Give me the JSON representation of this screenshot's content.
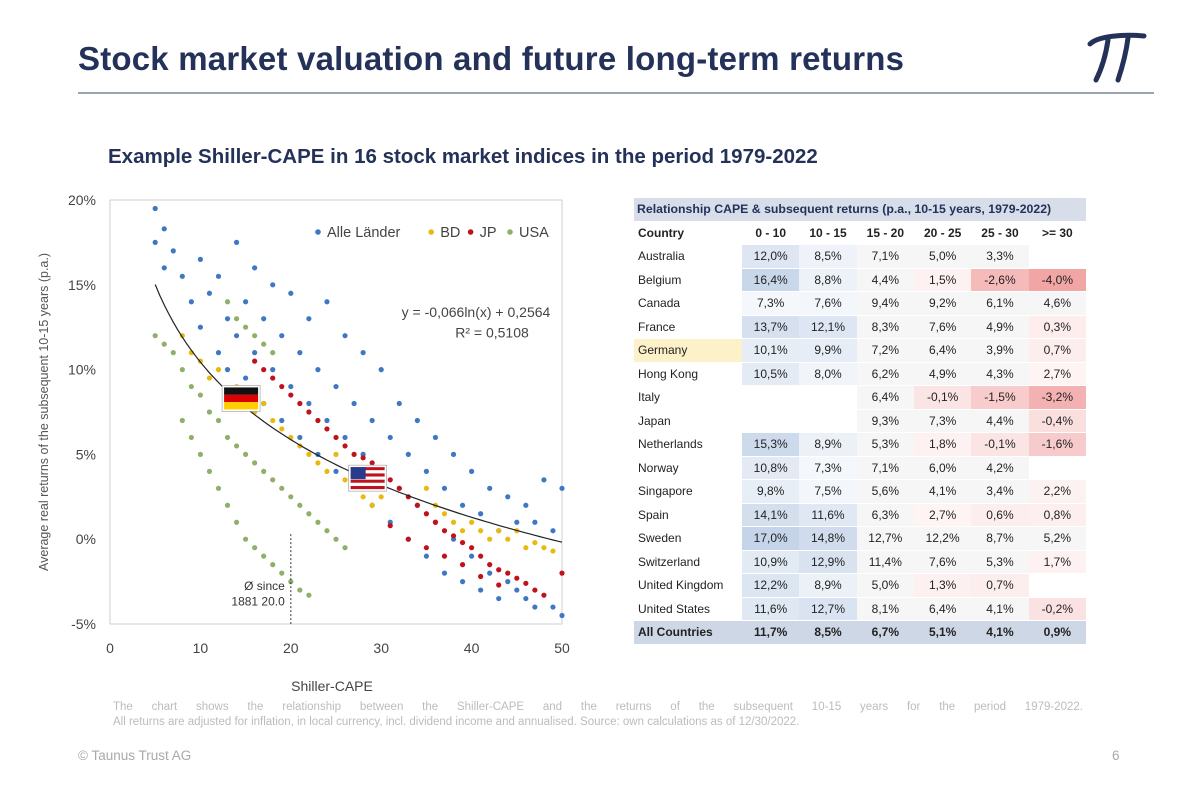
{
  "header": {
    "title": "Stock market valuation and future long-term returns"
  },
  "logo": {
    "icon": "pi-logo-icon",
    "color": "#243159"
  },
  "chart_title": "Example Shiller-CAPE in 16 stock market indices in the period 1979-2022",
  "chart_data": {
    "type": "scatter",
    "xlabel": "Shiller-CAPE",
    "ylabel": "Average real returns of the subsequent 10-15 years (p.a.)",
    "xlim": [
      0,
      50
    ],
    "ylim": [
      -5,
      20
    ],
    "x_ticks": [
      "0",
      "10",
      "20",
      "30",
      "40",
      "50"
    ],
    "y_ticks": [
      "-5%",
      "0%",
      "5%",
      "10%",
      "15%",
      "20%"
    ],
    "legend_position": "top-right",
    "series": [
      {
        "name": "Alle Länder",
        "color": "#3f78c2",
        "points": [
          [
            5,
            19.5
          ],
          [
            5,
            17.5
          ],
          [
            6,
            18.3
          ],
          [
            6,
            16
          ],
          [
            7,
            17
          ],
          [
            8,
            15.5
          ],
          [
            9,
            14
          ],
          [
            10,
            12.5
          ],
          [
            10,
            16.5
          ],
          [
            11,
            14.5
          ],
          [
            12,
            11
          ],
          [
            12,
            15.5
          ],
          [
            13,
            13
          ],
          [
            13,
            10
          ],
          [
            14,
            12
          ],
          [
            14,
            17.5
          ],
          [
            15,
            9.5
          ],
          [
            15,
            14
          ],
          [
            16,
            11
          ],
          [
            16,
            16
          ],
          [
            17,
            8
          ],
          [
            17,
            13
          ],
          [
            18,
            10
          ],
          [
            18,
            15
          ],
          [
            19,
            7
          ],
          [
            19,
            12
          ],
          [
            20,
            9
          ],
          [
            20,
            14.5
          ],
          [
            21,
            6
          ],
          [
            21,
            11
          ],
          [
            22,
            8
          ],
          [
            22,
            13
          ],
          [
            23,
            5
          ],
          [
            23,
            10
          ],
          [
            24,
            7
          ],
          [
            24,
            14
          ],
          [
            25,
            4
          ],
          [
            25,
            9
          ],
          [
            26,
            6
          ],
          [
            26,
            12
          ],
          [
            27,
            3
          ],
          [
            27,
            8
          ],
          [
            28,
            5
          ],
          [
            28,
            11
          ],
          [
            29,
            2
          ],
          [
            29,
            7
          ],
          [
            30,
            4
          ],
          [
            30,
            10
          ],
          [
            31,
            1
          ],
          [
            31,
            6
          ],
          [
            32,
            3
          ],
          [
            32,
            8
          ],
          [
            33,
            0
          ],
          [
            33,
            5
          ],
          [
            34,
            2
          ],
          [
            34,
            7
          ],
          [
            35,
            -1
          ],
          [
            35,
            4
          ],
          [
            36,
            1
          ],
          [
            36,
            6
          ],
          [
            37,
            -2
          ],
          [
            37,
            3
          ],
          [
            38,
            0
          ],
          [
            38,
            5
          ],
          [
            39,
            -2.5
          ],
          [
            39,
            2
          ],
          [
            40,
            -1
          ],
          [
            40,
            4
          ],
          [
            41,
            -3
          ],
          [
            41,
            1.5
          ],
          [
            42,
            -2
          ],
          [
            42,
            3
          ],
          [
            43,
            -3.5
          ],
          [
            43,
            0.5
          ],
          [
            44,
            -2.5
          ],
          [
            44,
            2.5
          ],
          [
            45,
            -3
          ],
          [
            45,
            1
          ],
          [
            46,
            -3.5
          ],
          [
            46,
            2
          ],
          [
            47,
            -4
          ],
          [
            47,
            1
          ],
          [
            48,
            3.5
          ],
          [
            49,
            -4
          ],
          [
            49,
            0.5
          ],
          [
            50,
            -4.5
          ],
          [
            50,
            3
          ]
        ]
      },
      {
        "name": "BD",
        "color": "#e8b90f",
        "points": [
          [
            8,
            12
          ],
          [
            9,
            11
          ],
          [
            10,
            10.5
          ],
          [
            11,
            9.5
          ],
          [
            12,
            10
          ],
          [
            13,
            8.5
          ],
          [
            14,
            9
          ],
          [
            15,
            8
          ],
          [
            16,
            7.5
          ],
          [
            17,
            8
          ],
          [
            18,
            7
          ],
          [
            19,
            6.5
          ],
          [
            20,
            6
          ],
          [
            21,
            5.5
          ],
          [
            22,
            5
          ],
          [
            23,
            4.5
          ],
          [
            24,
            4
          ],
          [
            25,
            5
          ],
          [
            26,
            3.5
          ],
          [
            27,
            3
          ],
          [
            28,
            2.5
          ],
          [
            29,
            2
          ],
          [
            30,
            2.5
          ],
          [
            35,
            3
          ],
          [
            36,
            2
          ],
          [
            37,
            1.5
          ],
          [
            38,
            1
          ],
          [
            39,
            0.5
          ],
          [
            40,
            1
          ],
          [
            41,
            0.5
          ],
          [
            42,
            0
          ],
          [
            43,
            0.5
          ],
          [
            44,
            0
          ],
          [
            45,
            0.5
          ],
          [
            46,
            -0.5
          ],
          [
            47,
            -0.2
          ],
          [
            48,
            -0.5
          ],
          [
            49,
            -0.7
          ]
        ]
      },
      {
        "name": "JP",
        "color": "#c0121d",
        "points": [
          [
            16,
            10.5
          ],
          [
            17,
            10
          ],
          [
            18,
            9.5
          ],
          [
            19,
            9
          ],
          [
            20,
            8.5
          ],
          [
            21,
            8
          ],
          [
            22,
            7.5
          ],
          [
            23,
            7
          ],
          [
            24,
            6.5
          ],
          [
            25,
            6
          ],
          [
            26,
            5.5
          ],
          [
            27,
            5
          ],
          [
            28,
            4.8
          ],
          [
            29,
            4.5
          ],
          [
            30,
            4
          ],
          [
            31,
            3.5
          ],
          [
            32,
            3
          ],
          [
            33,
            2.5
          ],
          [
            34,
            2
          ],
          [
            35,
            1.5
          ],
          [
            36,
            1
          ],
          [
            37,
            0.5
          ],
          [
            38,
            0.2
          ],
          [
            39,
            -0.2
          ],
          [
            40,
            -0.5
          ],
          [
            41,
            -1
          ],
          [
            42,
            -1.5
          ],
          [
            43,
            -1.8
          ],
          [
            44,
            -2
          ],
          [
            45,
            -2.3
          ],
          [
            46,
            -2.6
          ],
          [
            47,
            -3
          ],
          [
            48,
            -3.3
          ],
          [
            50,
            -2
          ],
          [
            31,
            0.8
          ],
          [
            33,
            0
          ],
          [
            35,
            -0.5
          ],
          [
            37,
            -1
          ],
          [
            39,
            -1.5
          ],
          [
            41,
            -2.2
          ],
          [
            43,
            -2.7
          ]
        ]
      },
      {
        "name": "USA",
        "color": "#8fb069",
        "points": [
          [
            5,
            12
          ],
          [
            6,
            11.5
          ],
          [
            7,
            11
          ],
          [
            8,
            10
          ],
          [
            8,
            7
          ],
          [
            9,
            9
          ],
          [
            9,
            6
          ],
          [
            10,
            8.5
          ],
          [
            10,
            5
          ],
          [
            11,
            7.5
          ],
          [
            11,
            4
          ],
          [
            12,
            7
          ],
          [
            12,
            3
          ],
          [
            13,
            6
          ],
          [
            13,
            2
          ],
          [
            14,
            5.5
          ],
          [
            14,
            1
          ],
          [
            15,
            5
          ],
          [
            15,
            0
          ],
          [
            16,
            4.5
          ],
          [
            16,
            -0.5
          ],
          [
            17,
            4
          ],
          [
            17,
            -1
          ],
          [
            18,
            3.5
          ],
          [
            18,
            -1.5
          ],
          [
            19,
            3
          ],
          [
            19,
            -2
          ],
          [
            20,
            2.5
          ],
          [
            20,
            -2.5
          ],
          [
            21,
            2
          ],
          [
            21,
            -3
          ],
          [
            22,
            1.5
          ],
          [
            22,
            -3.3
          ],
          [
            23,
            1
          ],
          [
            24,
            0.5
          ],
          [
            25,
            0
          ],
          [
            26,
            -0.5
          ],
          [
            13,
            14
          ],
          [
            14,
            13
          ],
          [
            15,
            12.5
          ],
          [
            16,
            12
          ],
          [
            17,
            11.5
          ],
          [
            18,
            11
          ]
        ]
      }
    ],
    "trendline": {
      "equation": "y = -0,066ln(x) + 0,2564",
      "r2": "R² = 0,5108",
      "a": -0.066,
      "b": 0.2564,
      "from": 5,
      "to": 50
    },
    "annotation": {
      "line1": "Ø since",
      "line2": "1881 20.0",
      "x": 20
    },
    "flags": [
      {
        "name": "Germany",
        "icon": "germany-flag-icon",
        "x": 14.5,
        "y": 8.3
      },
      {
        "name": "USA",
        "icon": "usa-flag-icon",
        "x": 28.5,
        "y": 3.6
      }
    ]
  },
  "table": {
    "caption": "Relationship CAPE & subsequent returns (p.a., 10-15 years, 1979-2022)",
    "columns": [
      "Country",
      "0 - 10",
      "10 - 15",
      "15 - 20",
      "20 - 25",
      "25 - 30",
      ">= 30"
    ],
    "rows": [
      {
        "country": "Australia",
        "values": [
          "12,0%",
          "8,5%",
          "7,1%",
          "5,0%",
          "3,3%",
          ""
        ]
      },
      {
        "country": "Belgium",
        "values": [
          "16,4%",
          "8,8%",
          "4,4%",
          "1,5%",
          "-2,6%",
          "-4,0%"
        ]
      },
      {
        "country": "Canada",
        "values": [
          "7,3%",
          "7,6%",
          "9,4%",
          "9,2%",
          "6,1%",
          "4,6%"
        ]
      },
      {
        "country": "France",
        "values": [
          "13,7%",
          "12,1%",
          "8,3%",
          "7,6%",
          "4,9%",
          "0,3%"
        ]
      },
      {
        "country": "Germany",
        "values": [
          "10,1%",
          "9,9%",
          "7,2%",
          "6,4%",
          "3,9%",
          "0,7%"
        ]
      },
      {
        "country": "Hong Kong",
        "values": [
          "10,5%",
          "8,0%",
          "6,2%",
          "4,9%",
          "4,3%",
          "2,7%"
        ]
      },
      {
        "country": "Italy",
        "values": [
          "",
          "",
          "6,4%",
          "-0,1%",
          "-1,5%",
          "-3,2%"
        ]
      },
      {
        "country": "Japan",
        "values": [
          "",
          "",
          "9,3%",
          "7,3%",
          "4,4%",
          "-0,4%"
        ]
      },
      {
        "country": "Netherlands",
        "values": [
          "15,3%",
          "8,9%",
          "5,3%",
          "1,8%",
          "-0,1%",
          "-1,6%"
        ]
      },
      {
        "country": "Norway",
        "values": [
          "10,8%",
          "7,3%",
          "7,1%",
          "6,0%",
          "4,2%",
          ""
        ]
      },
      {
        "country": "Singapore",
        "values": [
          "9,8%",
          "7,5%",
          "5,6%",
          "4,1%",
          "3,4%",
          "2,2%"
        ]
      },
      {
        "country": "Spain",
        "values": [
          "14,1%",
          "11,6%",
          "6,3%",
          "2,7%",
          "0,6%",
          "0,8%"
        ]
      },
      {
        "country": "Sweden",
        "values": [
          "17,0%",
          "14,8%",
          "12,7%",
          "12,2%",
          "8,7%",
          "5,2%"
        ]
      },
      {
        "country": "Switzerland",
        "values": [
          "10,9%",
          "12,9%",
          "11,4%",
          "7,6%",
          "5,3%",
          "1,7%"
        ]
      },
      {
        "country": "United Kingdom",
        "values": [
          "12,2%",
          "8,9%",
          "5,0%",
          "1,3%",
          "0,7%",
          ""
        ]
      },
      {
        "country": "United States",
        "values": [
          "11,6%",
          "12,7%",
          "8,1%",
          "6,4%",
          "4,1%",
          "-0,2%"
        ]
      }
    ],
    "total": {
      "country": "All Countries",
      "values": [
        "11,7%",
        "8,5%",
        "6,7%",
        "5,1%",
        "4,1%",
        "0,9%"
      ]
    }
  },
  "note": {
    "line1": "The chart shows the relationship between the Shiller-CAPE and the returns of the subsequent 10-15 years for the period 1979-2022.",
    "line2": "All returns are adjusted for inflation, in local currency, incl. dividend income and annualised. Source: own calculations as of 12/30/2022."
  },
  "footer": {
    "copyright": "© Taunus Trust AG",
    "page_number": "6"
  }
}
